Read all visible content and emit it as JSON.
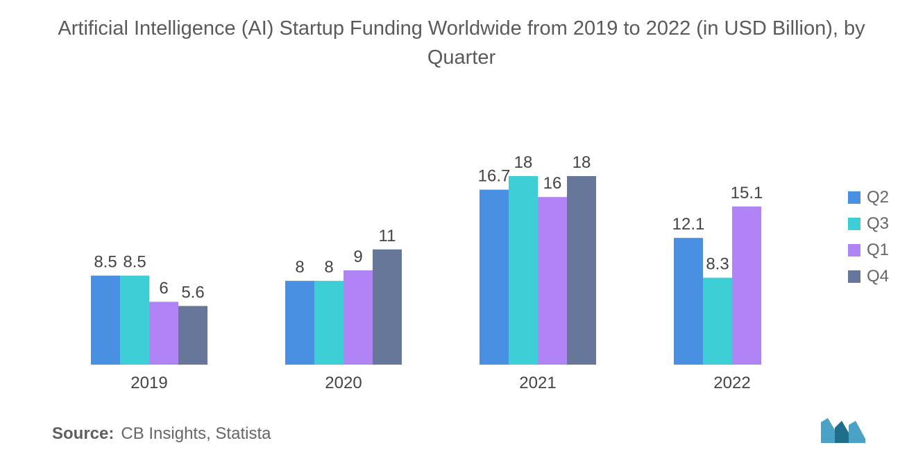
{
  "title": "Artificial Intelligence (AI) Startup Funding Worldwide from 2019 to 2022 (in USD Billion), by Quarter",
  "source": {
    "label": "Source:",
    "text": "CB Insights, Statista"
  },
  "chart_data": {
    "type": "bar",
    "categories": [
      "2019",
      "2020",
      "2021",
      "2022"
    ],
    "series": [
      {
        "name": "Q2",
        "color": "#4a90e2",
        "values": [
          8.5,
          8,
          16.7,
          12.1
        ]
      },
      {
        "name": "Q3",
        "color": "#3ecfd6",
        "values": [
          8.5,
          8,
          18,
          8.3
        ]
      },
      {
        "name": "Q1",
        "color": "#b084f5",
        "values": [
          6,
          9,
          16,
          15.1
        ]
      },
      {
        "name": "Q4",
        "color": "#667799",
        "values": [
          5.6,
          11,
          18,
          null
        ]
      }
    ],
    "value_labels": [
      [
        "8.5",
        "8.5",
        "6",
        "5.6"
      ],
      [
        "8",
        "8",
        "9",
        "11"
      ],
      [
        "16.7",
        "18",
        "16",
        "18"
      ],
      [
        "12.1",
        "8.3",
        "15.1",
        ""
      ]
    ],
    "xlabel": "",
    "ylabel": "",
    "ylim": [
      0,
      18
    ],
    "grid": false,
    "legend_position": "right"
  },
  "logo": {
    "colors": [
      "#4aa3c7",
      "#1f6f8b"
    ]
  }
}
